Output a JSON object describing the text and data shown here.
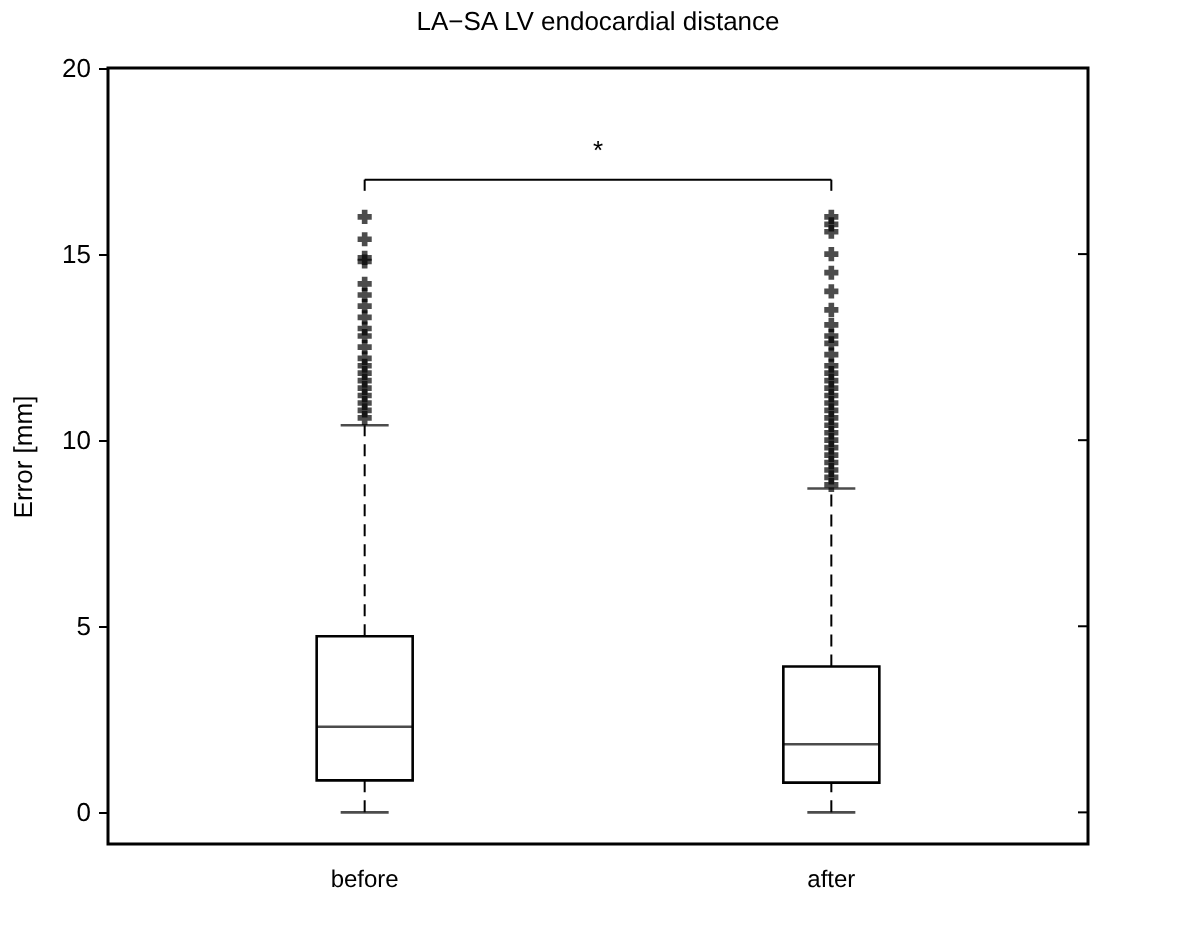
{
  "chart_data": {
    "type": "box",
    "title": "LA−SA LV endocardial distance",
    "ylabel": "Error [mm]",
    "categories": [
      "before",
      "after"
    ],
    "boxes": [
      {
        "low": 0,
        "q1": 0.86,
        "median": 2.3,
        "q3": 4.73,
        "high": 10.4,
        "outliers": [
          10.6,
          10.8,
          11.0,
          11.2,
          11.4,
          11.6,
          11.8,
          12.0,
          12.2,
          12.5,
          12.8,
          13.0,
          13.3,
          13.6,
          13.9,
          14.2,
          14.8,
          14.9,
          15.4,
          16.0
        ]
      },
      {
        "low": 0,
        "q1": 0.8,
        "median": 1.83,
        "q3": 3.92,
        "high": 8.7,
        "outliers": [
          8.8,
          9.0,
          9.2,
          9.4,
          9.6,
          9.8,
          10.0,
          10.2,
          10.4,
          10.6,
          10.8,
          11.0,
          11.2,
          11.4,
          11.6,
          11.8,
          12.0,
          12.3,
          12.6,
          12.8,
          13.1,
          13.5,
          14.0,
          14.5,
          15.0,
          15.6,
          15.8,
          16.0
        ]
      }
    ],
    "ylim": [
      -0.85,
      20
    ],
    "yticks": [
      0,
      5,
      10,
      15,
      20
    ],
    "annotations": [
      "*"
    ],
    "marker": "cross",
    "line_style": "dashed",
    "grid": false
  }
}
